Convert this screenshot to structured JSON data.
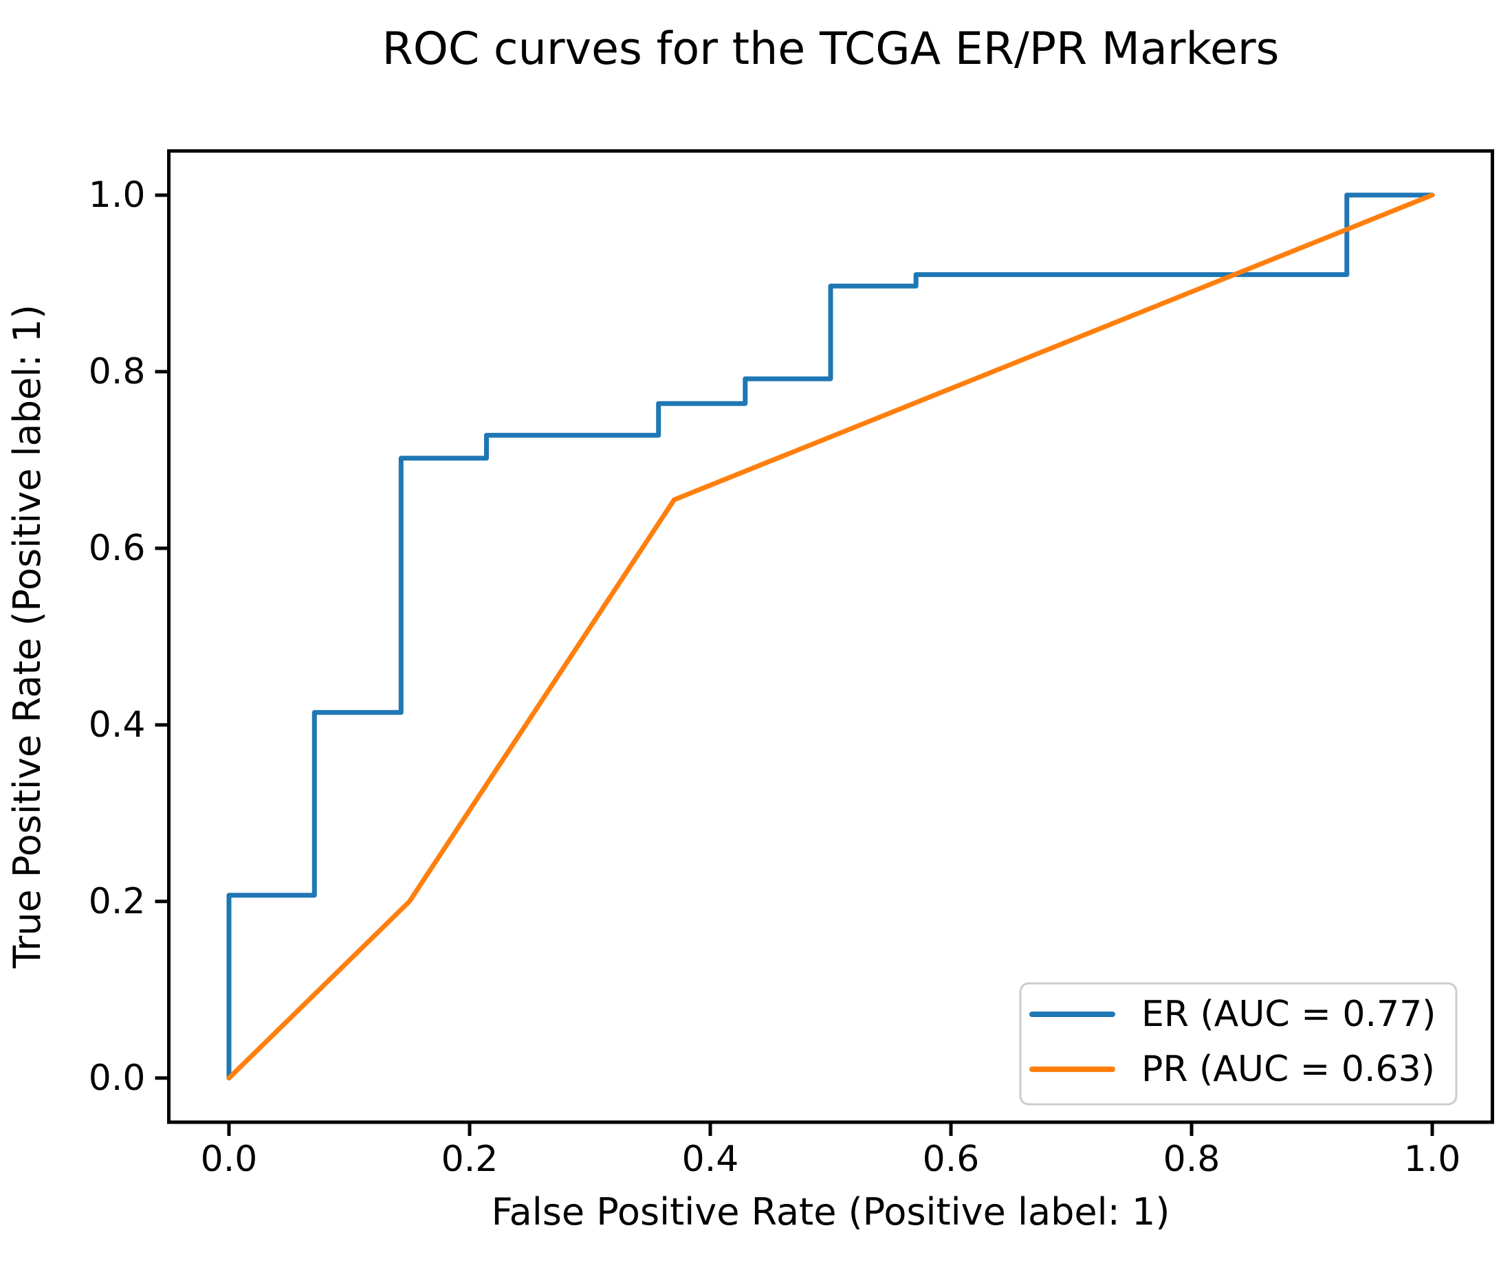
{
  "figure": {
    "background": "#ffffff"
  },
  "chart_data": {
    "type": "line",
    "title": "ROC curves for the TCGA ER/PR Markers",
    "xlabel": "False Positive Rate (Positive label: 1)",
    "ylabel": "True Positive Rate (Positive label: 1)",
    "xlim": [
      -0.05,
      1.05
    ],
    "ylim": [
      -0.05,
      1.05
    ],
    "xticks": [
      0.0,
      0.2,
      0.4,
      0.6,
      0.8,
      1.0
    ],
    "yticks": [
      0.0,
      0.2,
      0.4,
      0.6,
      0.8,
      1.0
    ],
    "grid": false,
    "legend": {
      "position": "lower right",
      "entries": [
        "ER (AUC = 0.77)",
        "PR (AUC = 0.63)"
      ]
    },
    "series": [
      {
        "id": "er",
        "label": "ER (AUC = 0.77)",
        "auc": 0.77,
        "color": "#1f77b4",
        "points": [
          [
            0.0,
            0.0
          ],
          [
            0.0,
            0.207
          ],
          [
            0.071,
            0.207
          ],
          [
            0.071,
            0.414
          ],
          [
            0.143,
            0.414
          ],
          [
            0.143,
            0.702
          ],
          [
            0.214,
            0.702
          ],
          [
            0.214,
            0.728
          ],
          [
            0.357,
            0.728
          ],
          [
            0.357,
            0.764
          ],
          [
            0.429,
            0.764
          ],
          [
            0.429,
            0.792
          ],
          [
            0.5,
            0.792
          ],
          [
            0.5,
            0.897
          ],
          [
            0.571,
            0.897
          ],
          [
            0.571,
            0.91
          ],
          [
            0.929,
            0.91
          ],
          [
            0.929,
            1.0
          ],
          [
            1.0,
            1.0
          ]
        ]
      },
      {
        "id": "pr",
        "label": "PR (AUC = 0.63)",
        "auc": 0.63,
        "color": "#ff7f0e",
        "points": [
          [
            0.0,
            0.0
          ],
          [
            0.15,
            0.2
          ],
          [
            0.37,
            0.655
          ],
          [
            1.0,
            1.0
          ]
        ]
      }
    ],
    "style": {
      "spine_color": "#000000",
      "curve_width": 7,
      "spine_width": 5,
      "tick_length": 20,
      "legend_border_color": "#cccccc",
      "legend_face_color": "#ffffff"
    }
  }
}
